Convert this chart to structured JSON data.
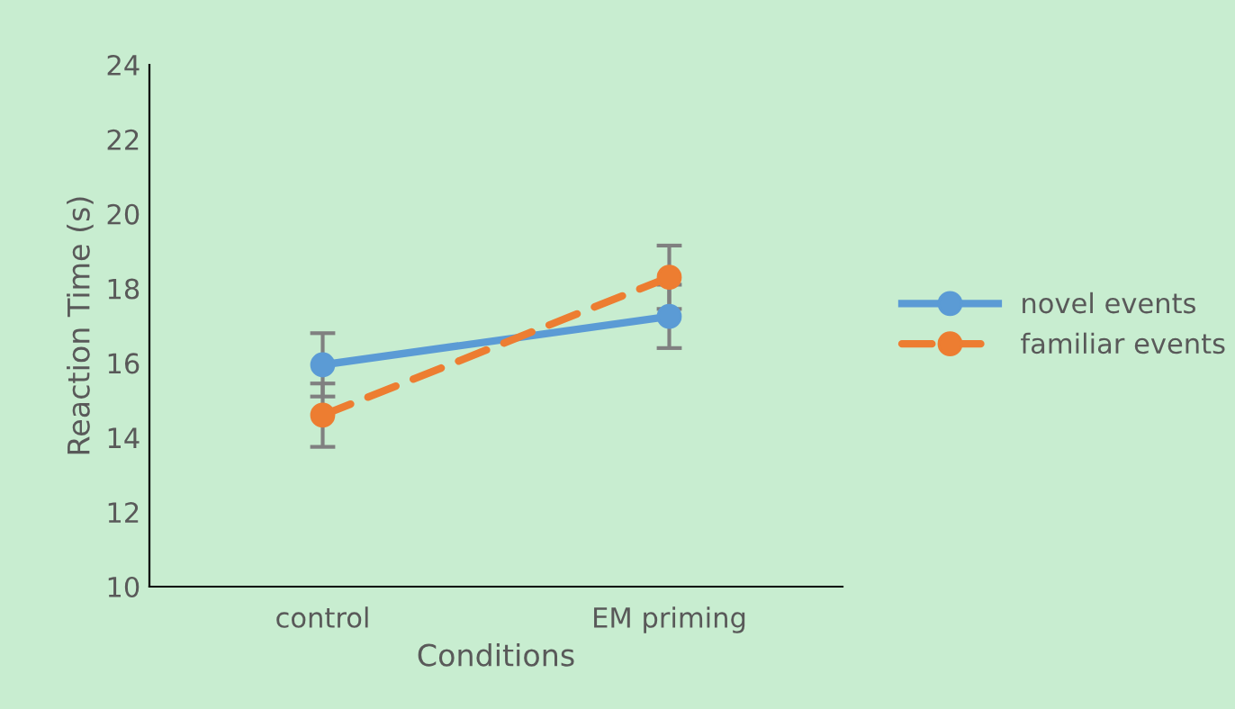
{
  "chart_data": {
    "type": "line",
    "xlabel": "Conditions",
    "ylabel": "Reaction Time (s)",
    "categories": [
      "control",
      "EM priming"
    ],
    "series": [
      {
        "name": "novel events",
        "color": "#5b9bd5",
        "values": [
          15.95,
          17.25
        ],
        "errors": [
          0.85,
          0.85
        ],
        "line_style": "solid"
      },
      {
        "name": "familiar events",
        "color": "#ed7d31",
        "values": [
          14.6,
          18.3
        ],
        "errors": [
          0.85,
          0.85
        ],
        "line_style": "dashed"
      }
    ],
    "ylim": [
      10,
      24
    ],
    "yticks": [
      10,
      12,
      14,
      16,
      18,
      20,
      22,
      24
    ],
    "grid": false,
    "legend": "right",
    "marker": "circle"
  }
}
